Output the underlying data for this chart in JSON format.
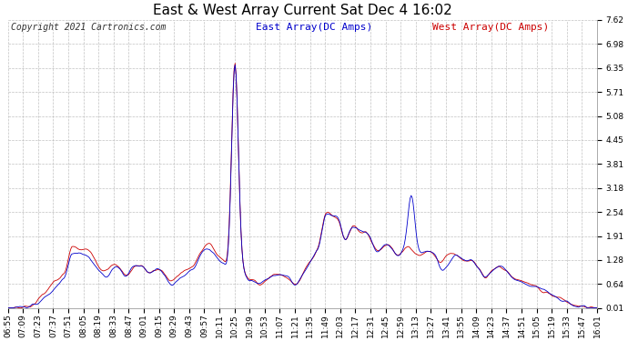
{
  "title": "East & West Array Current Sat Dec 4 16:02",
  "copyright": "Copyright 2021 Cartronics.com",
  "legend_east": "East Array(DC Amps)",
  "legend_west": "West Array(DC Amps)",
  "east_color": "#0000cc",
  "west_color": "#cc0000",
  "background_color": "#ffffff",
  "grid_color": "#aaaaaa",
  "ylim": [
    0.01,
    7.62
  ],
  "yticks": [
    0.01,
    0.64,
    1.28,
    1.91,
    2.54,
    3.18,
    3.81,
    4.45,
    5.08,
    5.71,
    6.35,
    6.98,
    7.62
  ],
  "xtick_labels": [
    "06:55",
    "07:09",
    "07:23",
    "07:37",
    "07:51",
    "08:05",
    "08:19",
    "08:33",
    "08:47",
    "09:01",
    "09:15",
    "09:29",
    "09:43",
    "09:57",
    "10:11",
    "10:25",
    "10:39",
    "10:53",
    "11:07",
    "11:21",
    "11:35",
    "11:49",
    "12:03",
    "12:17",
    "12:31",
    "12:45",
    "12:59",
    "13:13",
    "13:27",
    "13:41",
    "13:55",
    "14:09",
    "14:23",
    "14:37",
    "14:51",
    "15:05",
    "15:19",
    "15:33",
    "15:47",
    "16:01"
  ],
  "title_fontsize": 11,
  "copyright_fontsize": 7,
  "legend_fontsize": 8,
  "tick_fontsize": 6.5
}
